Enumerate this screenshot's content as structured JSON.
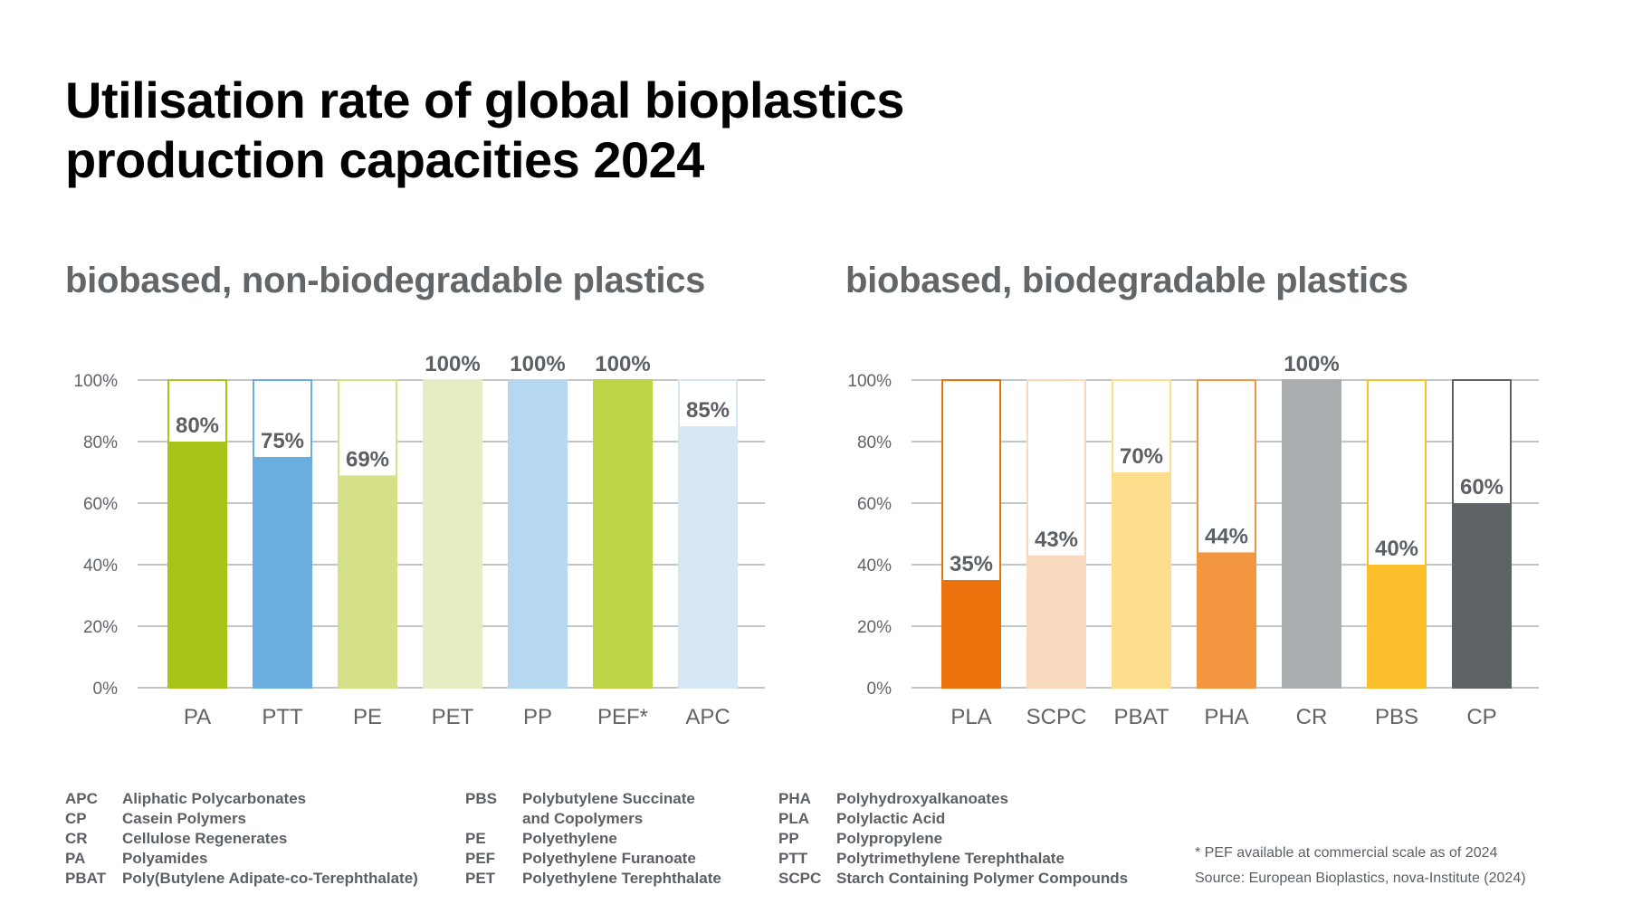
{
  "title_line1": "Utilisation rate of global bioplastics",
  "title_line2": "production capacities 2024",
  "chart_data": [
    {
      "type": "bar",
      "title": "biobased, non-biodegradable plastics",
      "categories": [
        "PA",
        "PTT",
        "PE",
        "PET",
        "PP",
        "PEF*",
        "APC"
      ],
      "values": [
        80,
        75,
        69,
        100,
        100,
        100,
        85
      ],
      "value_labels": [
        "80%",
        "75%",
        "69%",
        "100%",
        "100%",
        "100%",
        "85%"
      ],
      "colors": [
        "#a8c418",
        "#6aaddf",
        "#d5e088",
        "#e6edc2",
        "#b5d7ef",
        "#bdd444",
        "#d6e8f6"
      ],
      "ylim": [
        0,
        100
      ],
      "yticks": [
        "0%",
        "20%",
        "40%",
        "60%",
        "80%",
        "100%"
      ],
      "grid": true,
      "style": "filled bar inside an outlined 100% frame"
    },
    {
      "type": "bar",
      "title": "biobased, biodegradable plastics",
      "categories": [
        "PLA",
        "SCPC",
        "PBAT",
        "PHA",
        "CR",
        "PBS",
        "CP"
      ],
      "values": [
        35,
        43,
        70,
        44,
        100,
        40,
        60
      ],
      "value_labels": [
        "35%",
        "43%",
        "70%",
        "44%",
        "100%",
        "40%",
        "60%"
      ],
      "colors": [
        "#ec720e",
        "#f8d9be",
        "#fdde8d",
        "#f29640",
        "#abaeb0",
        "#fbbf2b",
        "#5e6466"
      ],
      "ylim": [
        0,
        100
      ],
      "yticks": [
        "0%",
        "20%",
        "40%",
        "60%",
        "80%",
        "100%"
      ],
      "grid": true,
      "style": "filled bar inside an outlined 100% frame"
    }
  ],
  "legend_columns": [
    [
      {
        "abbr": "APC",
        "name": "Aliphatic Polycarbonates"
      },
      {
        "abbr": "CP",
        "name": "Casein Polymers"
      },
      {
        "abbr": "CR",
        "name": "Cellulose Regenerates"
      },
      {
        "abbr": "PA",
        "name": "Polyamides"
      },
      {
        "abbr": "PBAT",
        "name": "Poly(Butylene Adipate-co-Terephthalate)"
      }
    ],
    [
      {
        "abbr": "PBS",
        "name": "Polybutylene Succinate"
      },
      {
        "abbr": "",
        "name": "and Copolymers"
      },
      {
        "abbr": "PE",
        "name": "Polyethylene"
      },
      {
        "abbr": "PEF",
        "name": "Polyethylene Furanoate"
      },
      {
        "abbr": "PET",
        "name": "Polyethylene Terephthalate"
      }
    ],
    [
      {
        "abbr": "PHA",
        "name": "Polyhydroxyalkanoates"
      },
      {
        "abbr": "PLA",
        "name": "Polylactic Acid"
      },
      {
        "abbr": "PP",
        "name": "Polypropylene"
      },
      {
        "abbr": "PTT",
        "name": "Polytrimethylene Terephthalate"
      },
      {
        "abbr": "SCPC",
        "name": "Starch Containing Polymer Compounds"
      }
    ]
  ],
  "footnote": "* PEF available at commercial scale as of 2024",
  "source": "Source: European Bioplastics, nova-Institute (2024)"
}
